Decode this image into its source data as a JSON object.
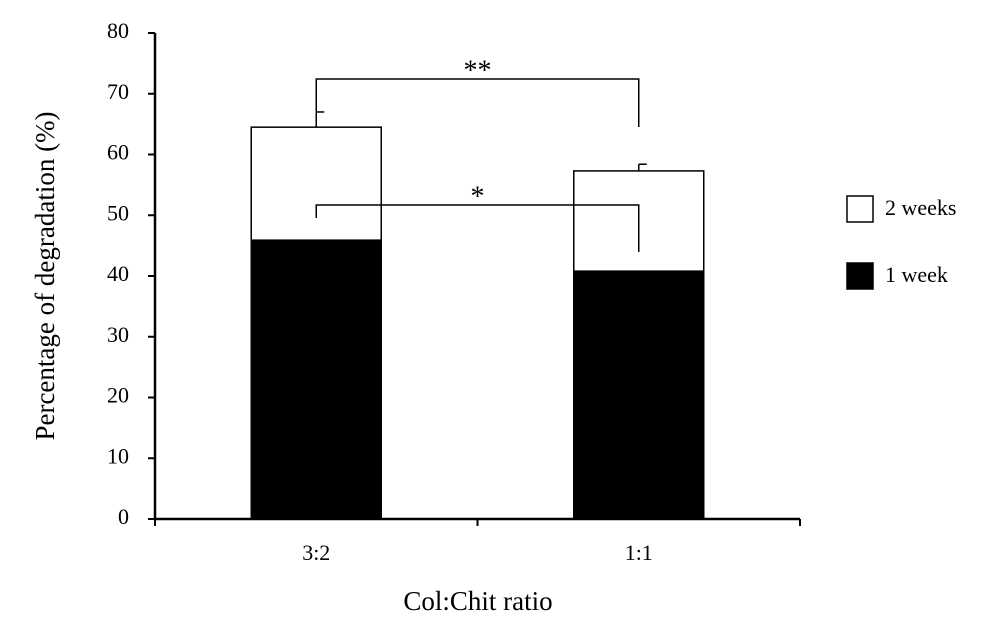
{
  "chart_data": {
    "type": "stacked_bar",
    "x_label": "Col:Chit ratio",
    "y_label": "Percentage of degradation (%)",
    "categories": [
      "3:2",
      "1:1"
    ],
    "series": [
      {
        "name": "1 week",
        "color": "#000000",
        "values": [
          45.9,
          40.8
        ],
        "errors": [
          0.7,
          0.8
        ]
      },
      {
        "name": "2 weeks",
        "color": "#ffffff",
        "values": [
          18.6,
          16.5
        ],
        "errors": [
          2.5,
          1.1
        ]
      }
    ],
    "ylim": [
      0,
      80
    ],
    "yticks": [
      0,
      10,
      20,
      30,
      40,
      50,
      60,
      70,
      80
    ],
    "annotations": [
      "**",
      "*"
    ],
    "legend": "right"
  }
}
